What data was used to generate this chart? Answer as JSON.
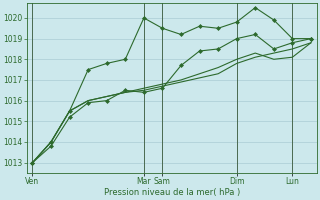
{
  "xlabel": "Pression niveau de la mer( hPa )",
  "bg_color": "#cce8ec",
  "grid_color": "#aaccd4",
  "line_color": "#2d6a2d",
  "vline_color": "#3a5a3a",
  "ylim": [
    1012.5,
    1020.7
  ],
  "xlim": [
    -0.3,
    15.3
  ],
  "day_labels": [
    "Ven",
    "Mar",
    "Sam",
    "Dim",
    "Lun"
  ],
  "day_positions": [
    0,
    6,
    7,
    11,
    14
  ],
  "yticks": [
    1013,
    1014,
    1015,
    1016,
    1017,
    1018,
    1019,
    1020
  ],
  "series": [
    [
      1013.0,
      1013.8,
      1015.2,
      1015.9,
      1016.0,
      1016.5,
      1016.4,
      1016.6,
      1017.7,
      1018.4,
      1018.5,
      1019.0,
      1019.2,
      1018.5,
      1018.8,
      1019.0
    ],
    [
      1013.0,
      1014.0,
      1015.5,
      1017.5,
      1017.8,
      1018.0,
      1020.0,
      1019.5,
      1019.2,
      1019.6,
      1019.5,
      1019.8,
      1020.5,
      1019.9,
      1019.0,
      1019.0
    ],
    [
      1013.0,
      1014.0,
      1015.5,
      1016.0,
      1016.2,
      1016.4,
      1016.5,
      1016.7,
      1016.9,
      1017.1,
      1017.3,
      1017.8,
      1018.1,
      1018.3,
      1018.5,
      1018.8
    ],
    [
      1013.0,
      1014.0,
      1015.5,
      1016.0,
      1016.2,
      1016.4,
      1016.6,
      1016.8,
      1017.0,
      1017.3,
      1017.6,
      1018.0,
      1018.3,
      1018.0,
      1018.1,
      1018.8
    ]
  ],
  "has_markers": [
    true,
    true,
    false,
    false
  ],
  "linewidths": [
    0.8,
    0.8,
    0.8,
    0.8
  ],
  "marker": "D",
  "markersize": 2.0,
  "xlabel_fontsize": 6.0,
  "ytick_fontsize": 5.5,
  "xtick_fontsize": 5.5
}
